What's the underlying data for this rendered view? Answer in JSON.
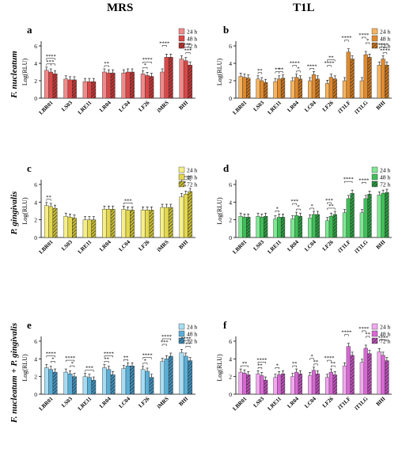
{
  "figure": {
    "col_titles": [
      "MRS",
      "T1L"
    ],
    "row_labels": [
      "F. nucleatum",
      "P. gingivalis",
      "F. nucleatum + P. gingivalis"
    ]
  },
  "chart_data": [
    {
      "panel": "a",
      "type": "bar",
      "ylabel": "Log(RLU)",
      "ylim": [
        0,
        6
      ],
      "yticks": [
        0,
        2,
        4,
        6
      ],
      "categories": [
        "LBR01",
        "LS03",
        "LRE11",
        "LR04",
        "LC04",
        "LF26",
        "iMRS",
        "BHI"
      ],
      "series": [
        {
          "name": "24 h",
          "values": [
            3.2,
            2.2,
            1.9,
            3.0,
            2.9,
            2.8,
            3.0,
            4.5
          ]
        },
        {
          "name": "48 h",
          "values": [
            3.0,
            2.1,
            1.9,
            2.9,
            3.0,
            2.6,
            4.7,
            4.3
          ]
        },
        {
          "name": "72 h",
          "values": [
            2.8,
            2.1,
            1.9,
            2.9,
            3.0,
            2.5,
            4.7,
            3.8
          ]
        }
      ],
      "colors": [
        "#f08a8a",
        "#d94848",
        "#c23535"
      ],
      "annotations": [
        {
          "i": 0,
          "a": 0,
          "b": 2,
          "label": "****",
          "level": 1
        },
        {
          "i": 0,
          "a": 0,
          "b": 1,
          "label": "**",
          "level": 0
        },
        {
          "i": 0,
          "a": 1,
          "b": 2,
          "label": "*",
          "level": 0
        },
        {
          "i": 3,
          "a": 0,
          "b": 1,
          "label": "**",
          "level": 0
        },
        {
          "i": 5,
          "a": 0,
          "b": 2,
          "label": "****",
          "level": 1
        },
        {
          "i": 5,
          "a": 0,
          "b": 1,
          "label": "*",
          "level": 0
        },
        {
          "i": 6,
          "a": 0,
          "b": 1,
          "label": "****",
          "level": 1
        },
        {
          "i": 7,
          "a": 0,
          "b": 2,
          "label": "****",
          "level": 1
        },
        {
          "i": 7,
          "a": 1,
          "b": 2,
          "label": "***",
          "level": 0
        }
      ]
    },
    {
      "panel": "b",
      "type": "bar",
      "ylabel": "Log(RLU)",
      "ylim": [
        0,
        6
      ],
      "yticks": [
        0,
        2,
        4,
        6
      ],
      "categories": [
        "LBR01",
        "LS03",
        "LRE11",
        "LR04",
        "LC04",
        "LF26",
        "iT1LF",
        "iT1LG",
        "BHI"
      ],
      "series": [
        {
          "name": "24 h",
          "values": [
            2.5,
            2.2,
            1.9,
            2.0,
            2.0,
            1.7,
            2.0,
            2.0,
            3.8
          ]
        },
        {
          "name": "48 h",
          "values": [
            2.4,
            2.0,
            2.2,
            2.4,
            2.7,
            2.4,
            5.3,
            5.0,
            4.5
          ]
        },
        {
          "name": "72 h",
          "values": [
            2.3,
            1.8,
            2.3,
            2.2,
            2.2,
            2.2,
            4.5,
            4.7,
            3.8
          ]
        }
      ],
      "colors": [
        "#f5b460",
        "#e08a2e",
        "#c9741c"
      ],
      "annotations": [
        {
          "i": 1,
          "a": 0,
          "b": 1,
          "label": "**",
          "level": 0
        },
        {
          "i": 2,
          "a": 0,
          "b": 1,
          "label": "**",
          "level": 0
        },
        {
          "i": 2,
          "a": 1,
          "b": 2,
          "label": "**",
          "level": 0
        },
        {
          "i": 3,
          "a": 0,
          "b": 1,
          "label": "****",
          "level": 1
        },
        {
          "i": 3,
          "a": 1,
          "b": 2,
          "label": "*",
          "level": 0
        },
        {
          "i": 4,
          "a": 0,
          "b": 1,
          "label": "****",
          "level": 0
        },
        {
          "i": 5,
          "a": 0,
          "b": 1,
          "label": "****",
          "level": 1
        },
        {
          "i": 5,
          "a": 0,
          "b": 2,
          "label": "**",
          "level": 2
        },
        {
          "i": 6,
          "a": 0,
          "b": 1,
          "label": "****",
          "level": 1
        },
        {
          "i": 7,
          "a": 0,
          "b": 1,
          "label": "****",
          "level": 2
        },
        {
          "i": 7,
          "a": 1,
          "b": 2,
          "label": "*",
          "level": 1
        },
        {
          "i": 8,
          "a": 0,
          "b": 2,
          "label": "****",
          "level": 1
        },
        {
          "i": 8,
          "a": 1,
          "b": 2,
          "label": "****",
          "level": 0
        }
      ]
    },
    {
      "panel": "c",
      "type": "bar",
      "ylabel": "Log(RLU)",
      "ylim": [
        0,
        6
      ],
      "yticks": [
        0,
        2,
        4,
        6
      ],
      "categories": [
        "LBR01",
        "LS03",
        "LRE11",
        "LR04",
        "LC04",
        "LF26",
        "iMRS",
        "BHI"
      ],
      "series": [
        {
          "name": "24 h",
          "values": [
            3.6,
            2.4,
            2.0,
            3.2,
            3.2,
            3.1,
            3.4,
            4.6
          ]
        },
        {
          "name": "48 h",
          "values": [
            3.5,
            2.3,
            2.0,
            3.2,
            3.1,
            3.1,
            3.4,
            4.9
          ]
        },
        {
          "name": "72 h",
          "values": [
            3.3,
            2.2,
            2.0,
            3.2,
            3.1,
            3.1,
            3.4,
            5.2
          ]
        }
      ],
      "colors": [
        "#f6ee8a",
        "#e3d84f",
        "#c9bd33"
      ],
      "annotations": [
        {
          "i": 0,
          "a": 0,
          "b": 1,
          "label": "**",
          "level": 0
        },
        {
          "i": 4,
          "a": 0,
          "b": 2,
          "label": "***",
          "level": 0
        },
        {
          "i": 7,
          "a": 0,
          "b": 2,
          "label": "****",
          "level": 1
        },
        {
          "i": 7,
          "a": 0,
          "b": 1,
          "label": "**",
          "level": 0
        }
      ]
    },
    {
      "panel": "d",
      "type": "bar",
      "ylabel": "Log(RLU)",
      "ylim": [
        0,
        6
      ],
      "yticks": [
        0,
        2,
        4,
        6
      ],
      "categories": [
        "LBR01",
        "LS03",
        "LRE11",
        "LR04",
        "LC04",
        "LF26",
        "iT1LF",
        "iT1LG",
        "BHI"
      ],
      "series": [
        {
          "name": "24 h",
          "values": [
            2.4,
            2.4,
            2.1,
            2.1,
            2.2,
            1.9,
            2.8,
            2.8,
            4.8
          ]
        },
        {
          "name": "48 h",
          "values": [
            2.3,
            2.3,
            2.3,
            2.5,
            2.6,
            2.4,
            4.4,
            4.4,
            5.0
          ]
        },
        {
          "name": "72 h",
          "values": [
            2.3,
            2.4,
            2.3,
            2.4,
            2.6,
            2.6,
            5.0,
            4.9,
            5.1
          ]
        }
      ],
      "colors": [
        "#7ee893",
        "#3fbf57",
        "#2a9c40"
      ],
      "annotations": [
        {
          "i": 2,
          "a": 0,
          "b": 1,
          "label": "*",
          "level": 0
        },
        {
          "i": 3,
          "a": 0,
          "b": 1,
          "label": "***",
          "level": 1
        },
        {
          "i": 3,
          "a": 1,
          "b": 2,
          "label": "*",
          "level": 0
        },
        {
          "i": 4,
          "a": 0,
          "b": 1,
          "label": "*",
          "level": 0
        },
        {
          "i": 5,
          "a": 0,
          "b": 1,
          "label": "***",
          "level": 1
        },
        {
          "i": 5,
          "a": 0,
          "b": 2,
          "label": "**",
          "level": 0
        },
        {
          "i": 6,
          "a": 0,
          "b": 2,
          "label": "****",
          "level": 1
        },
        {
          "i": 7,
          "a": 0,
          "b": 1,
          "label": "****",
          "level": 1
        }
      ]
    },
    {
      "panel": "e",
      "type": "bar",
      "ylabel": "Log(RLU)",
      "ylim": [
        0,
        6
      ],
      "yticks": [
        0,
        2,
        4,
        6
      ],
      "categories": [
        "LBR01",
        "LS03",
        "LRE11",
        "LR04",
        "LC04",
        "LF26",
        "iMRS",
        "BHI"
      ],
      "series": [
        {
          "name": "24 h",
          "values": [
            3.0,
            2.5,
            2.0,
            3.0,
            2.9,
            2.8,
            3.7,
            4.7
          ]
        },
        {
          "name": "48 h",
          "values": [
            2.8,
            2.3,
            1.9,
            2.8,
            3.2,
            2.6,
            4.0,
            4.3
          ]
        },
        {
          "name": "72 h",
          "values": [
            2.5,
            2.0,
            1.6,
            2.2,
            3.2,
            1.9,
            4.3,
            3.8
          ]
        }
      ],
      "colors": [
        "#a8dcf2",
        "#5aaed6",
        "#3f8fbb"
      ],
      "annotations": [
        {
          "i": 0,
          "a": 0,
          "b": 2,
          "label": "****",
          "level": 1
        },
        {
          "i": 0,
          "a": 1,
          "b": 2,
          "label": "*",
          "level": 0
        },
        {
          "i": 1,
          "a": 0,
          "b": 2,
          "label": "****",
          "level": 1
        },
        {
          "i": 1,
          "a": 1,
          "b": 2,
          "label": "*",
          "level": 0
        },
        {
          "i": 2,
          "a": 0,
          "b": 2,
          "label": "***",
          "level": 0
        },
        {
          "i": 3,
          "a": 0,
          "b": 2,
          "label": "****",
          "level": 1
        },
        {
          "i": 3,
          "a": 0,
          "b": 1,
          "label": "**",
          "level": 0
        },
        {
          "i": 4,
          "a": 0,
          "b": 1,
          "label": "**",
          "level": 0
        },
        {
          "i": 5,
          "a": 0,
          "b": 2,
          "label": "****",
          "level": 1
        },
        {
          "i": 5,
          "a": 0,
          "b": 1,
          "label": "*",
          "level": 0
        },
        {
          "i": 6,
          "a": 0,
          "b": 2,
          "label": "****",
          "level": 2
        },
        {
          "i": 6,
          "a": 0,
          "b": 1,
          "label": "***",
          "level": 1
        },
        {
          "i": 7,
          "a": 0,
          "b": 2,
          "label": "****",
          "level": 1
        },
        {
          "i": 7,
          "a": 1,
          "b": 2,
          "label": "**",
          "level": 0
        }
      ]
    },
    {
      "panel": "f",
      "type": "bar",
      "ylabel": "Log(RLU)",
      "ylim": [
        0,
        6
      ],
      "yticks": [
        0,
        2,
        4,
        6
      ],
      "categories": [
        "LBR01",
        "LS03",
        "LRE11",
        "LR04",
        "LC04",
        "LF26",
        "iT1LF",
        "iT1LG",
        "BHI"
      ],
      "series": [
        {
          "name": "24 h",
          "values": [
            2.5,
            2.3,
            1.9,
            2.0,
            2.1,
            1.9,
            3.2,
            3.6,
            4.8
          ]
        },
        {
          "name": "48 h",
          "values": [
            2.4,
            2.1,
            2.2,
            2.5,
            2.7,
            2.5,
            5.4,
            5.2,
            4.4
          ]
        },
        {
          "name": "72 h",
          "values": [
            2.2,
            1.6,
            2.3,
            2.3,
            2.3,
            2.2,
            4.4,
            4.6,
            3.8
          ]
        }
      ],
      "colors": [
        "#f2a8f0",
        "#d768d3",
        "#bd4dba"
      ],
      "annotations": [
        {
          "i": 0,
          "a": 0,
          "b": 2,
          "label": "**",
          "level": 0
        },
        {
          "i": 1,
          "a": 0,
          "b": 2,
          "label": "****",
          "level": 1
        },
        {
          "i": 1,
          "a": 0,
          "b": 1,
          "label": "**",
          "level": 0
        },
        {
          "i": 2,
          "a": 0,
          "b": 1,
          "label": "*",
          "level": 0
        },
        {
          "i": 3,
          "a": 0,
          "b": 1,
          "label": "**",
          "level": 0
        },
        {
          "i": 4,
          "a": 0,
          "b": 1,
          "label": "*",
          "level": 1
        },
        {
          "i": 4,
          "a": 1,
          "b": 2,
          "label": "**",
          "level": 0
        },
        {
          "i": 5,
          "a": 0,
          "b": 1,
          "label": "****",
          "level": 1
        },
        {
          "i": 5,
          "a": 1,
          "b": 2,
          "label": "**",
          "level": 0
        },
        {
          "i": 6,
          "a": 0,
          "b": 1,
          "label": "****",
          "level": 1
        },
        {
          "i": 7,
          "a": 0,
          "b": 1,
          "label": "****",
          "level": 2
        },
        {
          "i": 7,
          "a": 1,
          "b": 2,
          "label": "**",
          "level": 1
        },
        {
          "i": 8,
          "a": 0,
          "b": 2,
          "label": "****",
          "level": 1
        }
      ]
    }
  ]
}
